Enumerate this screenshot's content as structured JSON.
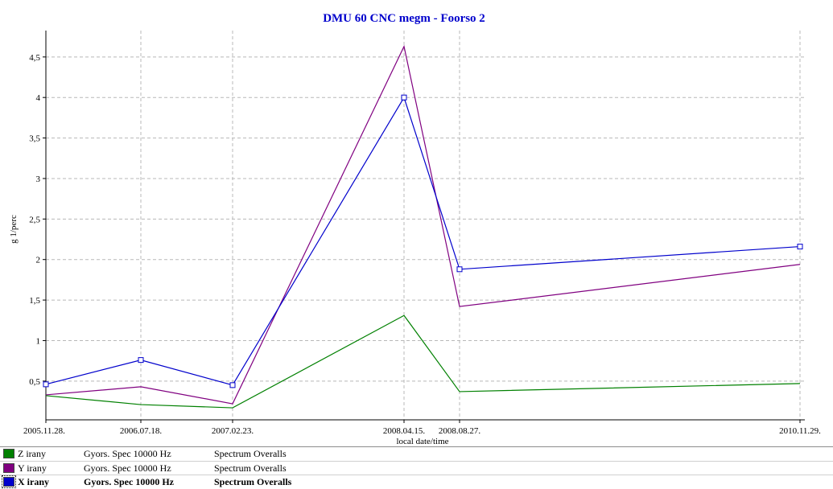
{
  "chart_data": {
    "type": "line",
    "title": "DMU 60 CNC megm - Foorso 2",
    "xlabel": "local date/time",
    "ylabel": "g 1/perc",
    "x": [
      "2005.11.28.",
      "2006.07.18.",
      "2007.02.23.",
      "2008.04.15.",
      "2008.08.27.",
      "2010.11.29."
    ],
    "ylim": [
      0,
      4.8
    ],
    "yticks": [
      0.5,
      1,
      1.5,
      2,
      2.5,
      3,
      3.5,
      4,
      4.5
    ],
    "ytick_labels": [
      "0,5",
      "1",
      "1,5",
      "2",
      "2,5",
      "3",
      "3,5",
      "4",
      "4,5"
    ],
    "grid": true,
    "series": [
      {
        "name": "Z irany",
        "color": "#008000",
        "markers": false,
        "values": [
          0.32,
          0.21,
          0.17,
          1.31,
          0.37,
          0.47
        ]
      },
      {
        "name": "Y irany",
        "color": "#800080",
        "markers": false,
        "values": [
          0.33,
          0.43,
          0.22,
          4.63,
          1.42,
          1.94
        ]
      },
      {
        "name": "X irany",
        "color": "#0000cc",
        "markers": true,
        "values": [
          0.46,
          0.76,
          0.45,
          4.0,
          1.88,
          2.16
        ]
      }
    ]
  },
  "legend": [
    {
      "swatch_color": "#008000",
      "name": "Z irany",
      "measurement": "Gyors. Spec 10000 Hz",
      "type": "Spectrum Overalls",
      "selected": false
    },
    {
      "swatch_color": "#800080",
      "name": "Y irany",
      "measurement": "Gyors. Spec 10000 Hz",
      "type": "Spectrum Overalls",
      "selected": false
    },
    {
      "swatch_color": "#0000cc",
      "name": "X irany",
      "measurement": "Gyors. Spec 10000 Hz",
      "type": "Spectrum Overalls",
      "selected": true
    }
  ]
}
